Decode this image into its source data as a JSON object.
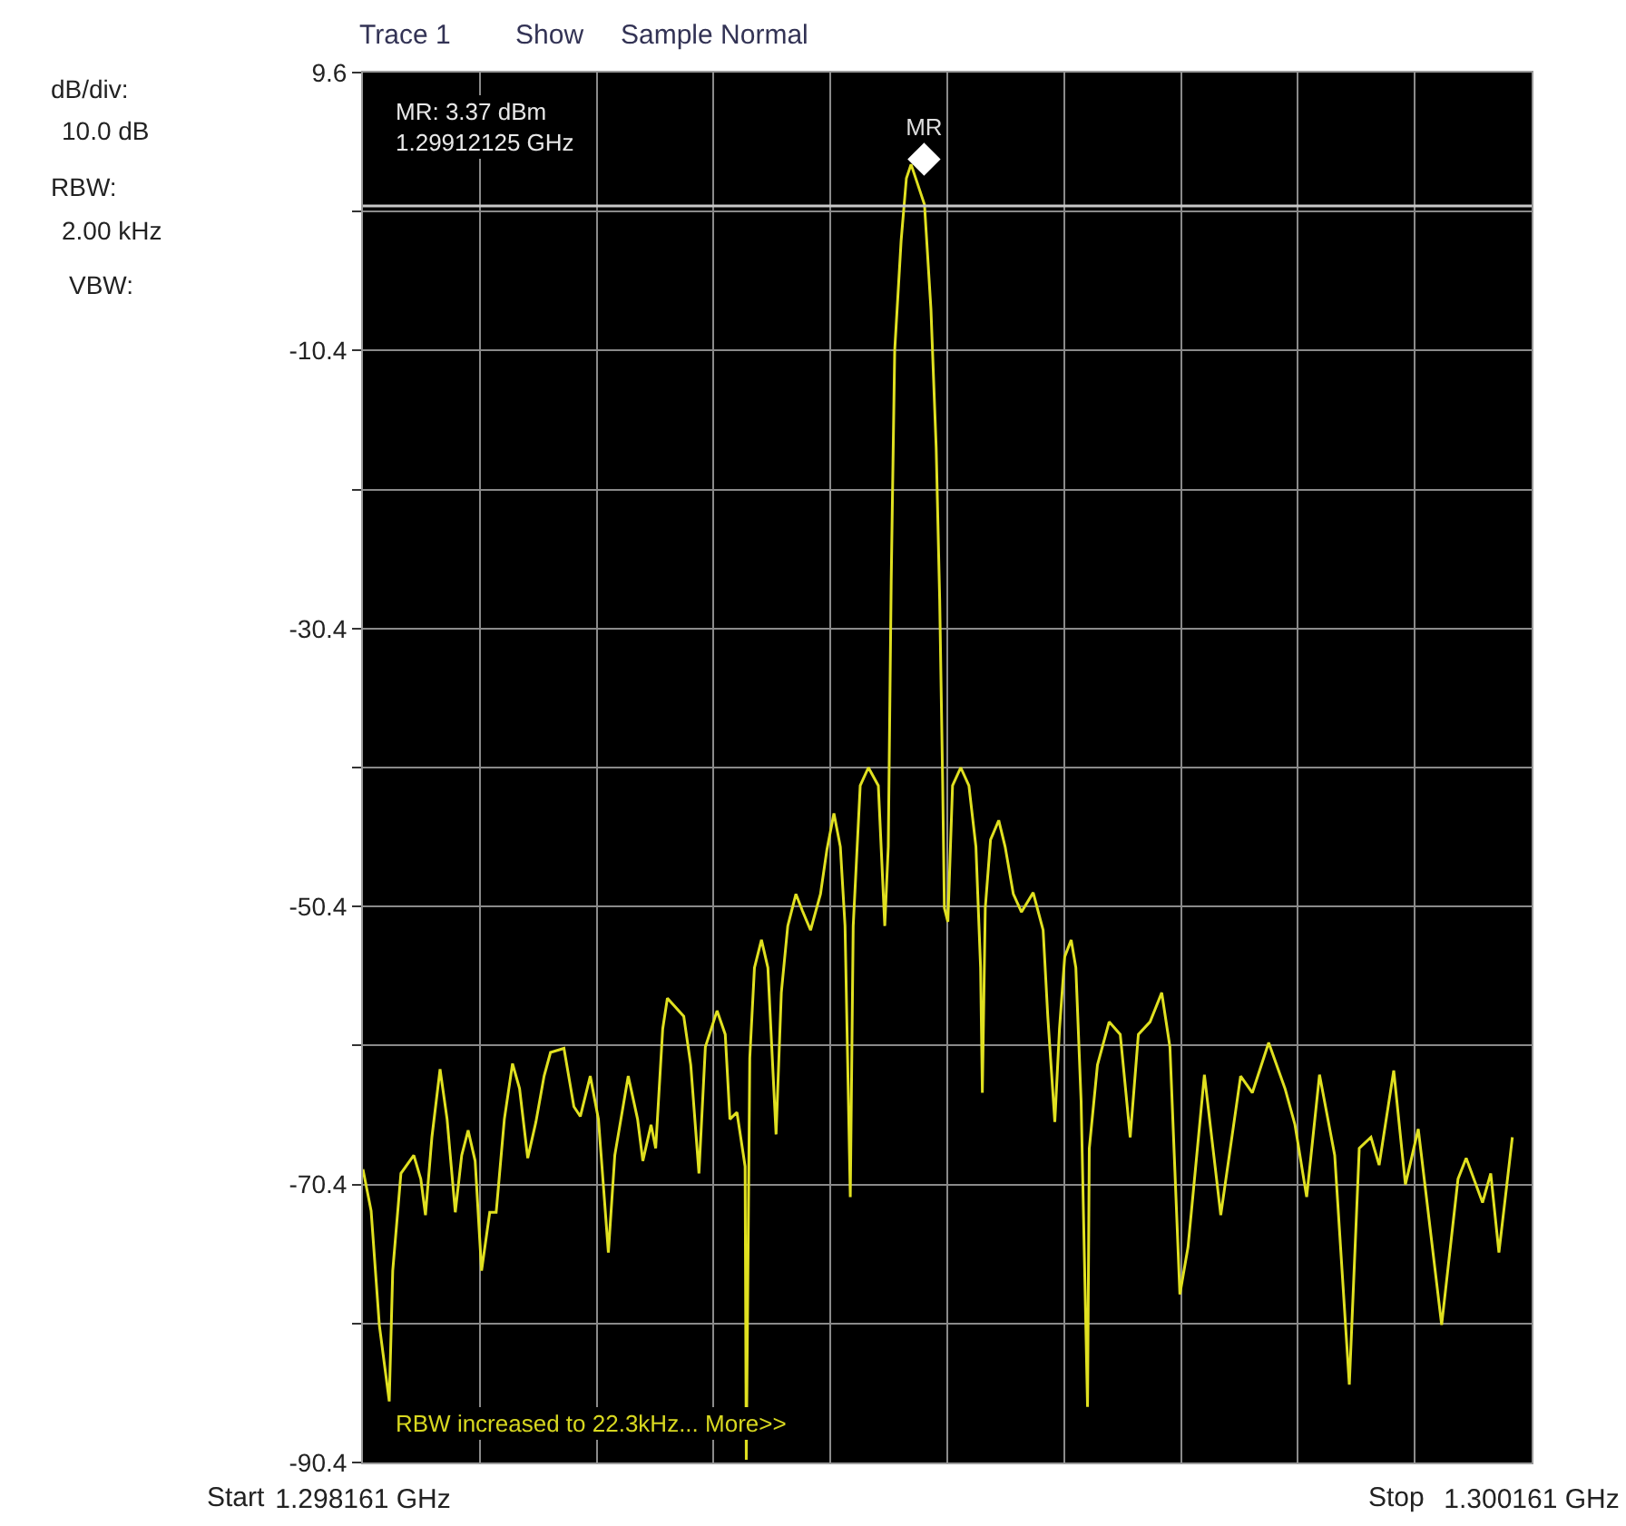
{
  "chart_data": {
    "type": "line",
    "annotations": [
      "Trace 1",
      "Show",
      "Sample Normal",
      "dB/div:",
      "10.0 dB",
      "RBW:",
      "2.00 kHz",
      "VBW:",
      "MR: 3.37 dBm\n1.29912125 GHz",
      "RBW increased to 22.3kHz... More>>",
      "Start",
      "Stop"
    ],
    "xlim": [
      1.298161,
      1.300161
    ],
    "xticks": [
      {
        "value": 1.298161,
        "label": "1.298161 GHz"
      },
      {
        "value": 1.298361,
        "label": null
      },
      {
        "value": 1.298561,
        "label": null
      },
      {
        "value": 1.298761,
        "label": null
      },
      {
        "value": 1.298961,
        "label": null
      },
      {
        "value": 1.299161,
        "label": null
      },
      {
        "value": 1.299361,
        "label": null
      },
      {
        "value": 1.299561,
        "label": null
      },
      {
        "value": 1.299761,
        "label": null
      },
      {
        "value": 1.299961,
        "label": null
      },
      {
        "value": 1.300161,
        "label": "1.300161 GHz"
      }
    ],
    "ylim": [
      -90.4,
      9.6
    ],
    "yticks": [
      9.6,
      {
        "value": -0.4,
        "label": null
      },
      -10.4,
      {
        "value": -20.4,
        "label": null
      },
      -30.4,
      {
        "value": -40.4,
        "label": null
      },
      -50.4,
      {
        "value": -60.4,
        "label": null
      },
      -70.4,
      {
        "value": -80.4,
        "label": null
      },
      -90.4
    ],
    "grid": true,
    "ref_lines": [
      {
        "axis": "y",
        "value": 0,
        "color": "#c8c8c8"
      }
    ],
    "series": [
      {
        "color": "#e0e020",
        "line_style": "solid",
        "marker": "none",
        "x": [
          1.298161,
          1.298175,
          1.298189,
          1.298206,
          1.298212,
          1.298226,
          1.298248,
          1.29826,
          1.298268,
          1.298279,
          1.298293,
          1.298305,
          1.298319,
          1.29833,
          1.298341,
          1.298353,
          1.298364,
          1.298378,
          1.298389,
          1.298403,
          1.298417,
          1.298429,
          1.298443,
          1.298457,
          1.298471,
          1.298482,
          1.298505,
          1.298522,
          1.298533,
          1.29855,
          1.298564,
          1.298581,
          1.298592,
          1.298615,
          1.298631,
          1.29864,
          1.298654,
          1.298662,
          1.298674,
          1.298682,
          1.29871,
          1.298722,
          1.298736,
          1.298747,
          1.298767,
          1.298781,
          1.298789,
          1.298801,
          1.298815,
          1.298817,
          1.298823,
          1.298831,
          1.298843,
          1.298854,
          1.29886,
          1.298868,
          1.298877,
          1.298888,
          1.298902,
          1.298913,
          1.298927,
          1.298944,
          1.298955,
          1.298967,
          1.298978,
          1.298986,
          1.298995,
          1.299,
          1.299012,
          1.299026,
          1.299043,
          1.299054,
          1.29906,
          1.299065,
          1.299071,
          1.299082,
          1.299091,
          1.299099,
          1.299122,
          1.299133,
          1.299142,
          1.299148,
          1.299153,
          1.299156,
          1.299162,
          1.29917,
          1.299184,
          1.299198,
          1.29921,
          1.299218,
          1.299221,
          1.299226,
          1.299235,
          1.299249,
          1.29926,
          1.299274,
          1.299288,
          1.299308,
          1.299325,
          1.299333,
          1.299345,
          1.299353,
          1.299362,
          1.299373,
          1.299381,
          1.29939,
          1.299401,
          1.299404,
          1.299418,
          1.299438,
          1.299457,
          1.299466,
          1.299474,
          1.299488,
          1.299508,
          1.299528,
          1.299542,
          1.299559,
          1.299573,
          1.299601,
          1.299629,
          1.299663,
          1.299683,
          1.299711,
          1.299739,
          1.299756,
          1.299776,
          1.299798,
          1.299824,
          1.299849,
          1.299866,
          1.299886,
          1.2999,
          1.299925,
          1.299945,
          1.299967,
          1.300007,
          1.300035,
          1.300049,
          1.300077,
          1.300091,
          1.300105,
          1.300128
        ],
        "values": [
          -69.3,
          -72.3,
          -80.5,
          -86.0,
          -76.6,
          -69.6,
          -68.3,
          -70.0,
          -72.6,
          -67.0,
          -62.1,
          -65.7,
          -72.4,
          -68.3,
          -66.5,
          -68.7,
          -76.6,
          -72.4,
          -72.4,
          -65.7,
          -61.7,
          -63.5,
          -68.5,
          -65.9,
          -62.6,
          -60.9,
          -60.6,
          -64.8,
          -65.5,
          -62.6,
          -65.7,
          -75.3,
          -68.3,
          -62.6,
          -65.7,
          -68.7,
          -66.1,
          -67.8,
          -59.2,
          -57.0,
          -58.3,
          -61.8,
          -69.6,
          -60.5,
          -57.9,
          -59.6,
          -65.7,
          -65.2,
          -69.1,
          -90.2,
          -61.3,
          -54.8,
          -52.8,
          -54.8,
          -60.0,
          -66.8,
          -56.6,
          -51.8,
          -49.5,
          -50.7,
          -52.1,
          -49.5,
          -46.3,
          -43.7,
          -46.1,
          -51.8,
          -71.3,
          -51.8,
          -41.7,
          -40.4,
          -41.7,
          -51.8,
          -46.1,
          -27.0,
          -10.4,
          -2.5,
          2.0,
          3.0,
          0.1,
          -7.4,
          -17.4,
          -28.3,
          -41.3,
          -50.5,
          -51.5,
          -41.7,
          -40.4,
          -41.7,
          -46.1,
          -54.8,
          -63.8,
          -50.5,
          -45.6,
          -44.2,
          -46.1,
          -49.5,
          -50.8,
          -49.4,
          -52.1,
          -58.3,
          -65.9,
          -59.2,
          -54.0,
          -52.8,
          -54.8,
          -64.4,
          -86.4,
          -67.8,
          -61.8,
          -58.7,
          -59.6,
          -63.5,
          -67.0,
          -59.6,
          -58.7,
          -56.6,
          -60.5,
          -78.3,
          -74.9,
          -62.5,
          -72.6,
          -62.6,
          -63.8,
          -60.2,
          -63.5,
          -66.1,
          -71.3,
          -62.5,
          -68.3,
          -84.8,
          -67.8,
          -67.0,
          -69.0,
          -62.2,
          -70.4,
          -66.4,
          -80.5,
          -70.0,
          -68.5,
          -71.7,
          -69.6,
          -75.3,
          -67.0
        ]
      },
      {
        "name": "MR",
        "type": "scatter",
        "color": "#ffffff",
        "marker": "diamond",
        "x": [
          1.29912125
        ],
        "values": [
          3.37
        ]
      }
    ]
  }
}
